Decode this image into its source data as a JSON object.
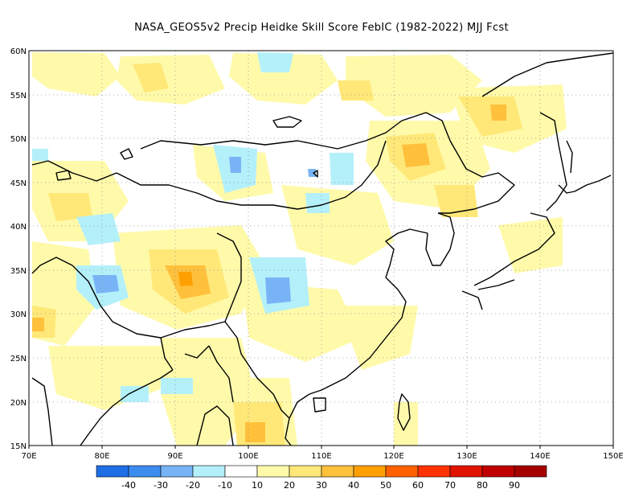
{
  "title": "NASA_GEOS5v2 Precip Heidke Skill Score FebIC (1982-2022) MJJ Fcst",
  "map": {
    "lon_ticks": [
      "70E",
      "80E",
      "90E",
      "100E",
      "110E",
      "120E",
      "130E",
      "140E",
      "150E"
    ],
    "lat_ticks": [
      "15N",
      "20N",
      "25N",
      "30N",
      "35N",
      "40N",
      "45N",
      "50N",
      "55N",
      "60N"
    ],
    "lon_range": [
      70,
      150
    ],
    "lat_range": [
      15,
      60
    ]
  },
  "colorbar": {
    "labels": [
      "-40",
      "-30",
      "-20",
      "-10",
      "10",
      "20",
      "30",
      "40",
      "50",
      "60",
      "70",
      "80",
      "90"
    ],
    "colors": [
      "#1e6ee6",
      "#3c8cf0",
      "#78b4f5",
      "#b4f0fa",
      "#ffffff",
      "#fffaaa",
      "#ffe878",
      "#ffc03c",
      "#ffa000",
      "#ff6000",
      "#ff3200",
      "#e11400",
      "#c00000",
      "#a50000"
    ]
  },
  "anomaly_colors": {
    "light_yellow": "#fffaaa",
    "yellow": "#ffe878",
    "orange": "#ffc03c",
    "dark_orange": "#ffa000",
    "light_blue": "#b4f0fa",
    "blue": "#78b4f5",
    "deep_blue": "#3c8cf0",
    "coastline": "#000000"
  }
}
